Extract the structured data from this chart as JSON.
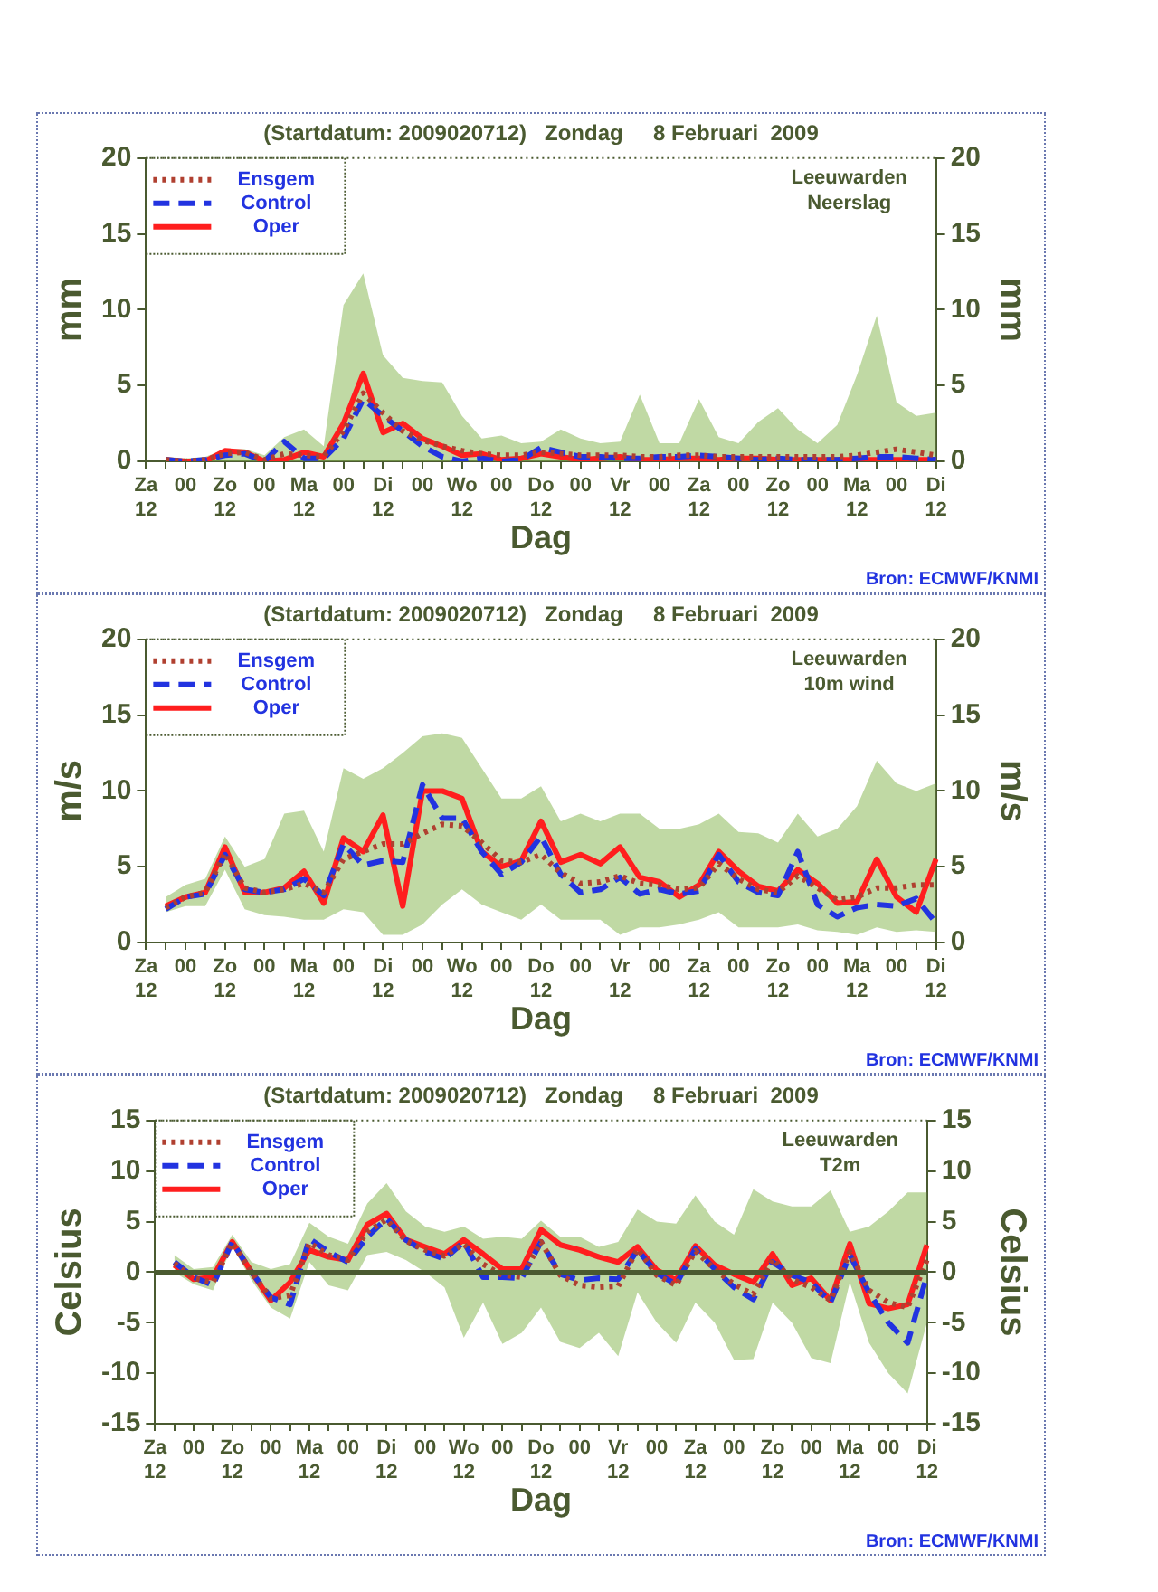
{
  "chart_data": [
    {
      "type": "line",
      "title": "(Startdatum: 2009020712)   Zondag     8 Februari  2009",
      "xlabel": "Dag",
      "ylabel": "mm",
      "y2label": "mm",
      "annotations": [
        "Leeuwarden\nNeerslag",
        "Bron: ECMWF/KNMI"
      ],
      "categories": [
        "Za\n12",
        null,
        "00",
        null,
        "Zo\n12",
        null,
        "00",
        null,
        "Ma\n12",
        null,
        "00",
        null,
        "Di\n12",
        null,
        "00",
        null,
        "Wo\n12",
        null,
        "00",
        null,
        "Do\n12",
        null,
        "00",
        null,
        "Vr\n12",
        null,
        "00",
        null,
        "Za\n12",
        null,
        "00",
        null,
        "Zo\n12",
        null,
        "00",
        null,
        "Ma\n12",
        null,
        "00",
        null,
        "Di\n12"
      ],
      "ylim": [
        0,
        20
      ],
      "yticks": [
        0,
        5,
        10,
        15,
        20
      ],
      "y2lim": [
        0,
        20
      ],
      "y2ticks": [
        0,
        5,
        10,
        15,
        20
      ],
      "legend": "top left",
      "series": [
        {
          "name": "Ensgem",
          "color": "#b04030",
          "line_style": "dotted",
          "values": [
            null,
            0.1,
            0,
            0.1,
            0.5,
            0.6,
            0.1,
            0.5,
            0.4,
            0.3,
            2,
            4.5,
            3.2,
            2,
            1.4,
            1,
            0.7,
            0.5,
            0.4,
            0.4,
            0.6,
            0.5,
            0.4,
            0.4,
            0.4,
            0.3,
            0.3,
            0.4,
            0.4,
            0.3,
            0.3,
            0.3,
            0.3,
            0.3,
            0.3,
            0.3,
            0.4,
            0.6,
            0.8,
            0.6,
            0.4
          ],
          "lower": [
            null,
            0,
            0,
            0,
            0,
            0,
            0,
            0,
            0,
            0,
            0,
            0,
            0,
            0,
            0,
            0,
            0,
            0,
            0,
            0,
            0,
            0,
            0,
            0,
            0,
            0,
            0,
            0,
            0,
            0,
            0,
            0,
            0,
            0,
            0,
            0,
            0,
            0,
            0,
            0,
            0
          ],
          "upper": [
            null,
            0.3,
            0.2,
            0.3,
            0.8,
            0.8,
            0.4,
            1.6,
            2.1,
            1,
            10.3,
            12.4,
            7,
            5.5,
            5.3,
            5.2,
            3,
            1.5,
            1.7,
            1.2,
            1.3,
            2.1,
            1.5,
            1.2,
            1.3,
            4.4,
            1.2,
            1.2,
            4.1,
            1.6,
            1.2,
            2.6,
            3.5,
            2.1,
            1.2,
            2.4,
            5.7,
            9.6,
            3.9,
            3,
            3.2
          ]
        },
        {
          "name": "Control",
          "color": "#2233e0",
          "line_style": "dashed",
          "values": [
            null,
            0.1,
            0,
            0.1,
            0.4,
            0.5,
            0,
            1.3,
            0.2,
            0.2,
            1.5,
            4.1,
            3,
            2,
            1,
            0.3,
            0,
            0.2,
            0,
            0.1,
            0.9,
            0.6,
            0.3,
            0.3,
            0.2,
            0.2,
            0.3,
            0.3,
            0.4,
            0.3,
            0.2,
            0.1,
            0.2,
            0.1,
            0.1,
            0.1,
            0.2,
            0.3,
            0.3,
            0.2,
            0.1
          ]
        },
        {
          "name": "Oper",
          "color": "#ff1e1e",
          "line_style": "solid",
          "values": [
            null,
            0.1,
            0,
            0,
            0.7,
            0.6,
            0,
            0.1,
            0.6,
            0.3,
            2.5,
            5.8,
            1.9,
            2.5,
            1.5,
            1,
            0.4,
            0.5,
            0.1,
            0.2,
            0.5,
            0.3,
            0.1,
            0.2,
            0.3,
            0.1,
            0.1,
            0.2,
            0.2,
            0.1,
            0.2,
            0.2,
            0.1,
            0.1,
            0.1,
            0.1,
            0.1,
            0.1,
            0.1,
            0.1,
            0.1
          ]
        }
      ]
    },
    {
      "type": "line",
      "title": "(Startdatum: 2009020712)   Zondag     8 Februari  2009",
      "xlabel": "Dag",
      "ylabel": "m/s",
      "y2label": "m/s",
      "annotations": [
        "Leeuwarden\n10m wind",
        "Bron: ECMWF/KNMI"
      ],
      "categories": [
        "Za\n12",
        null,
        "00",
        null,
        "Zo\n12",
        null,
        "00",
        null,
        "Ma\n12",
        null,
        "00",
        null,
        "Di\n12",
        null,
        "00",
        null,
        "Wo\n12",
        null,
        "00",
        null,
        "Do\n12",
        null,
        "00",
        null,
        "Vr\n12",
        null,
        "00",
        null,
        "Za\n12",
        null,
        "00",
        null,
        "Zo\n12",
        null,
        "00",
        null,
        "Ma\n12",
        null,
        "00",
        null,
        "Di\n12"
      ],
      "ylim": [
        0,
        20
      ],
      "yticks": [
        0,
        5,
        10,
        15,
        20
      ],
      "y2lim": [
        0,
        20
      ],
      "y2ticks": [
        0,
        5,
        10,
        15,
        20
      ],
      "legend": "top left",
      "series": [
        {
          "name": "Ensgem",
          "color": "#b04030",
          "line_style": "dotted",
          "values": [
            null,
            2.3,
            3,
            3.3,
            5.9,
            3.6,
            3.3,
            3.5,
            3.9,
            3.3,
            5.5,
            6,
            6.5,
            6.5,
            7.2,
            7.8,
            7.7,
            6.6,
            5.4,
            5.3,
            5.8,
            4.6,
            3.9,
            4,
            4.4,
            3.9,
            3.8,
            3.5,
            3.6,
            5.2,
            4.2,
            3.5,
            3.3,
            4.4,
            3.6,
            2.8,
            3,
            3.6,
            3.6,
            3.8,
            3.8
          ],
          "lower": [
            null,
            2,
            2.4,
            2.4,
            4.8,
            2.2,
            1.8,
            1.7,
            1.5,
            1.5,
            2.2,
            2,
            0.5,
            0.5,
            1.2,
            2.5,
            3.5,
            2.5,
            2,
            1.5,
            2.5,
            1.5,
            1.5,
            1.5,
            0.5,
            1,
            1,
            1.2,
            1.5,
            2,
            1,
            1,
            1,
            1.2,
            0.8,
            0.7,
            0.5,
            1,
            0.7,
            0.8,
            0.7
          ],
          "upper": [
            null,
            3,
            3.8,
            4.2,
            7,
            5,
            5.5,
            8.5,
            8.7,
            6,
            11.5,
            10.8,
            11.5,
            12.5,
            13.6,
            13.8,
            13.5,
            11.5,
            9.5,
            9.5,
            10.3,
            8,
            8.5,
            8,
            8.5,
            8.5,
            7.5,
            7.5,
            7.8,
            8.5,
            7.3,
            7.2,
            6.6,
            8.5,
            7,
            7.5,
            9,
            12,
            10.5,
            10,
            10.5
          ]
        },
        {
          "name": "Control",
          "color": "#2233e0",
          "line_style": "dashed",
          "values": [
            null,
            2.2,
            3,
            3.2,
            5.8,
            3.5,
            3.3,
            3.5,
            4.2,
            3.1,
            6.5,
            5.1,
            5.4,
            5.3,
            10.4,
            8.2,
            8.2,
            6,
            4.5,
            5.3,
            7,
            4.5,
            3.3,
            3.5,
            4.3,
            3.2,
            3.5,
            3.2,
            3.4,
            5.8,
            4,
            3.3,
            3.1,
            6,
            2.5,
            1.7,
            2.3,
            2.5,
            2.4,
            2.9,
            1.3
          ]
        },
        {
          "name": "Oper",
          "color": "#ff1e1e",
          "line_style": "solid",
          "values": [
            null,
            2.4,
            3,
            3.3,
            6.3,
            3.3,
            3.3,
            3.6,
            4.7,
            2.6,
            6.9,
            6,
            8.4,
            2.4,
            10,
            10,
            9.5,
            6,
            5,
            5.4,
            8,
            5.3,
            5.8,
            5.2,
            6.3,
            4.3,
            4,
            3,
            3.8,
            6,
            4.7,
            3.7,
            3.4,
            4.8,
            3.9,
            2.6,
            2.7,
            5.5,
            3,
            2,
            5.5
          ]
        }
      ]
    },
    {
      "type": "line",
      "title": "(Startdatum: 2009020712)   Zondag     8 Februari  2009",
      "xlabel": "Dag",
      "ylabel": "Celsius",
      "y2label": "Celsius",
      "annotations": [
        "Leeuwarden\nT2m",
        "Bron: ECMWF/KNMI"
      ],
      "categories": [
        "Za\n12",
        null,
        "00",
        null,
        "Zo\n12",
        null,
        "00",
        null,
        "Ma\n12",
        null,
        "00",
        null,
        "Di\n12",
        null,
        "00",
        null,
        "Wo\n12",
        null,
        "00",
        null,
        "Do\n12",
        null,
        "00",
        null,
        "Vr\n12",
        null,
        "00",
        null,
        "Za\n12",
        null,
        "00",
        null,
        "Zo\n12",
        null,
        "00",
        null,
        "Ma\n12",
        null,
        "00",
        null,
        "Di\n12"
      ],
      "ylim": [
        -15,
        15
      ],
      "yticks": [
        -15,
        -10,
        -5,
        0,
        5,
        10,
        15
      ],
      "y2lim": [
        -15,
        15
      ],
      "y2ticks": [
        -15,
        -10,
        -5,
        0,
        5,
        10,
        15
      ],
      "legend": "top left",
      "ref_lines": [
        {
          "axis": "y",
          "value": 0,
          "color": "#4a5a30"
        }
      ],
      "series": [
        {
          "name": "Ensgem",
          "color": "#b04030",
          "line_style": "dotted",
          "values": [
            null,
            0.9,
            -0.6,
            -1,
            2.9,
            0,
            -2.6,
            -2.3,
            2.9,
            1.7,
            1.2,
            4,
            5.2,
            3.1,
            2.2,
            1.6,
            2.8,
            0.8,
            -0.3,
            -0.5,
            3,
            -0.3,
            -1.3,
            -1.5,
            -1.4,
            2.3,
            -0.3,
            -1.3,
            2.1,
            0.3,
            -1.2,
            -2.2,
            1.3,
            -0.7,
            -1.5,
            -2.8,
            2,
            -1.8,
            -3,
            -3.5,
            1.2
          ],
          "lower": [
            null,
            0,
            -1.2,
            -1.8,
            2.5,
            -0.8,
            -3.5,
            -4.6,
            1,
            -1.3,
            -1.8,
            1.7,
            2,
            1.2,
            0,
            -1.5,
            -6.5,
            -3,
            -7.1,
            -6,
            -3.5,
            -6.9,
            -7.5,
            -6,
            -8.3,
            -2,
            -5,
            -7,
            -3,
            -5,
            -8.7,
            -8.6,
            -3,
            -5,
            -8.5,
            -9,
            -1,
            -7,
            -10,
            -12,
            -5
          ],
          "upper": [
            null,
            1.7,
            0.3,
            0.5,
            3.7,
            1,
            0.3,
            0.8,
            4.9,
            3.5,
            2.8,
            6.8,
            8.8,
            6,
            4.5,
            4,
            4.5,
            3.3,
            3.5,
            3.3,
            5.1,
            3.5,
            3.5,
            2.5,
            3,
            6.2,
            5,
            4.8,
            7.6,
            5,
            3.7,
            8.2,
            7,
            6.5,
            6.5,
            8.1,
            4,
            4.5,
            6,
            7.9,
            7.9
          ]
        },
        {
          "name": "Control",
          "color": "#2233e0",
          "line_style": "dashed",
          "values": [
            null,
            1,
            -0.5,
            -1.3,
            3,
            0,
            -2.5,
            -3.2,
            3.3,
            2,
            1,
            3.5,
            5.3,
            3.2,
            2,
            1.3,
            3,
            -0.5,
            -0.5,
            -0.6,
            3,
            -0.2,
            -0.8,
            -0.6,
            -0.7,
            2.2,
            -0.1,
            -1.2,
            2.3,
            0.3,
            -1.5,
            -2.7,
            1,
            -0.3,
            -1,
            -3,
            1.7,
            -2,
            -5,
            -7,
            -0.3
          ]
        },
        {
          "name": "Oper",
          "color": "#ff1e1e",
          "line_style": "solid",
          "values": [
            null,
            0.7,
            -0.7,
            -0.5,
            3,
            0,
            -2.8,
            -1,
            2.2,
            1.5,
            1.2,
            4.7,
            5.8,
            3.2,
            2.5,
            1.8,
            3.2,
            1.8,
            0.3,
            0.3,
            4.2,
            2.7,
            2.2,
            1.5,
            1,
            2.5,
            0.2,
            -0.8,
            2.6,
            0.7,
            -0.2,
            -1,
            1.8,
            -1.3,
            -0.6,
            -2.8,
            2.8,
            -3.1,
            -3.6,
            -3.2,
            2.7
          ]
        }
      ]
    }
  ]
}
